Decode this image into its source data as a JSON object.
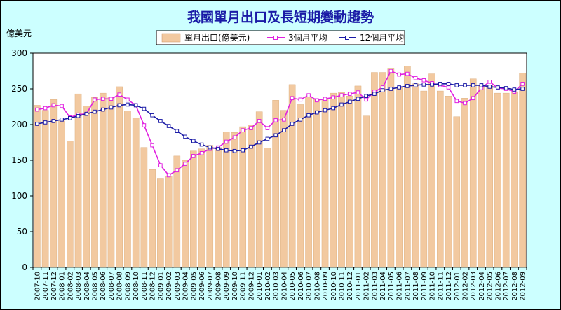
{
  "chart_data": {
    "type": "bar",
    "title": "我國單月出口及長短期變動趨勢",
    "ylabel": "億美元",
    "xlabel": "",
    "ylim": [
      0,
      300
    ],
    "yticks": [
      0,
      50,
      100,
      150,
      200,
      250,
      300
    ],
    "grid": false,
    "legend_position": "top",
    "categories": [
      "2007-10",
      "2007-11",
      "2007-12",
      "2008-01",
      "2008-02",
      "2008-03",
      "2008-04",
      "2008-05",
      "2008-06",
      "2008-07",
      "2008-08",
      "2008-09",
      "2008-10",
      "2008-11",
      "2008-12",
      "2009-01",
      "2009-02",
      "2009-03",
      "2009-04",
      "2009-05",
      "2009-06",
      "2009-07",
      "2009-08",
      "2009-09",
      "2009-10",
      "2009-11",
      "2009-12",
      "2010-01",
      "2010-02",
      "2010-03",
      "2010-04",
      "2010-05",
      "2010-06",
      "2010-07",
      "2010-08",
      "2010-09",
      "2010-10",
      "2010-11",
      "2010-12",
      "2011-01",
      "2011-02",
      "2011-03",
      "2011-04",
      "2011-05",
      "2011-06",
      "2011-07",
      "2011-08",
      "2011-09",
      "2011-10",
      "2011-11",
      "2011-12",
      "2012-01",
      "2012-02",
      "2012-03",
      "2012-04",
      "2012-05",
      "2012-06",
      "2012-07",
      "2012-08",
      "2012-09"
    ],
    "series": [
      {
        "name": "單月出口(億美元)",
        "kind": "bar",
        "color": "#f2c9a0",
        "values": [
          227,
          220,
          235,
          205,
          177,
          243,
          226,
          238,
          244,
          238,
          253,
          219,
          209,
          168,
          137,
          124,
          128,
          156,
          150,
          163,
          166,
          171,
          168,
          190,
          189,
          197,
          199,
          218,
          167,
          234,
          220,
          256,
          228,
          239,
          235,
          235,
          244,
          245,
          240,
          254,
          212,
          273,
          273,
          279,
          252,
          282,
          257,
          247,
          271,
          247,
          240,
          211,
          237,
          264,
          255,
          255,
          244,
          244,
          246,
          272
        ]
      },
      {
        "name": "3個月平均",
        "kind": "line",
        "color": "#e020e0",
        "values": [
          221,
          223,
          227,
          226,
          210,
          214,
          215,
          235,
          236,
          236,
          242,
          235,
          227,
          199,
          171,
          143,
          129,
          136,
          145,
          156,
          160,
          166,
          168,
          176,
          182,
          192,
          195,
          205,
          195,
          206,
          207,
          237,
          235,
          241,
          234,
          236,
          238,
          241,
          243,
          245,
          235,
          246,
          252,
          275,
          270,
          271,
          265,
          262,
          258,
          255,
          252,
          233,
          230,
          237,
          251,
          260,
          251,
          250,
          246,
          257
        ]
      },
      {
        "name": "12個月平均",
        "kind": "line",
        "color": "#1a1aa6",
        "values": [
          201,
          203,
          205,
          207,
          209,
          212,
          215,
          218,
          221,
          224,
          227,
          228,
          227,
          222,
          213,
          205,
          198,
          191,
          183,
          177,
          172,
          168,
          166,
          164,
          163,
          164,
          169,
          175,
          180,
          185,
          192,
          201,
          207,
          213,
          217,
          220,
          223,
          228,
          232,
          236,
          240,
          243,
          248,
          250,
          252,
          254,
          255,
          256,
          256,
          257,
          257,
          255,
          255,
          255,
          255,
          253,
          252,
          251,
          249,
          250
        ]
      }
    ]
  }
}
